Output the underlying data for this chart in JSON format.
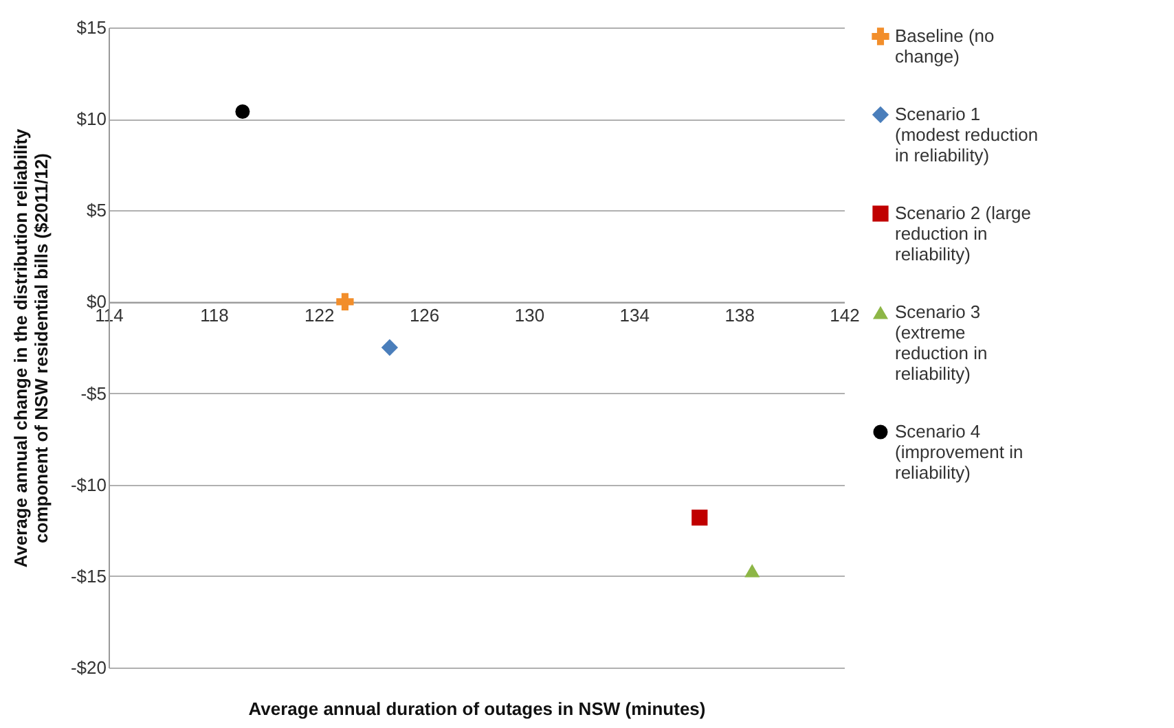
{
  "chart_data": {
    "type": "scatter",
    "xlabel": "Average annual duration of outages in NSW (minutes)",
    "ylabel": "Average annual change in the distribution reliability component of NSW residential bills ($2011/12)",
    "xlim": [
      114,
      142
    ],
    "xticks": [
      114,
      118,
      122,
      126,
      130,
      134,
      138,
      142
    ],
    "ylim": [
      -20,
      15
    ],
    "yticks": [
      {
        "value": -20,
        "label": "-$20"
      },
      {
        "value": -15,
        "label": "-$15"
      },
      {
        "value": -10,
        "label": "-$10"
      },
      {
        "value": -5,
        "label": "-$5"
      },
      {
        "value": 0,
        "label": "$0"
      },
      {
        "value": 5,
        "label": "$5"
      },
      {
        "value": 10,
        "label": "$10"
      },
      {
        "value": 15,
        "label": "$15"
      }
    ],
    "grid": "y",
    "legend": "right",
    "series": [
      {
        "name": "Baseline (no change)",
        "color": "#f28e2b",
        "marker": "cross",
        "x": [
          123.0
        ],
        "values": [
          0
        ]
      },
      {
        "name": "Scenario 1 (modest reduction in reliability)",
        "color": "#4a7ebb",
        "marker": "diamond",
        "x": [
          124.7
        ],
        "values": [
          -2.5
        ]
      },
      {
        "name": "Scenario 2 (large reduction in reliability)",
        "color": "#c00000",
        "marker": "square",
        "x": [
          136.5
        ],
        "values": [
          -11.8
        ]
      },
      {
        "name": "Scenario 3 (extreme reduction in reliability)",
        "color": "#8db646",
        "marker": "triangle",
        "x": [
          138.5
        ],
        "values": [
          -14.7
        ]
      },
      {
        "name": "Scenario 4 (improvement in reliability)",
        "color": "#000000",
        "marker": "circle",
        "x": [
          119.1
        ],
        "values": [
          10.4
        ]
      }
    ]
  }
}
